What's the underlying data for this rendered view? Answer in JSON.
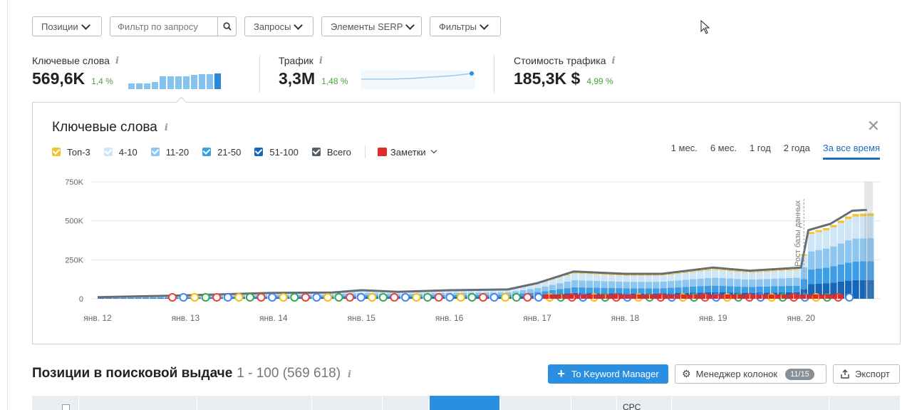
{
  "filters": {
    "positions": "Позиции",
    "search_placeholder": "Фильтр по запросу",
    "queries": "Запросы",
    "serp": "Элементы SERP",
    "filters": "Фильтры"
  },
  "summary": {
    "keywords": {
      "label": "Ключевые слова",
      "value": "569,6K",
      "delta": "1,4 %",
      "bars": [
        0.35,
        0.35,
        0.35,
        0.45,
        0.8,
        0.8,
        0.8,
        0.8,
        0.9,
        0.95,
        0.95,
        1.0
      ]
    },
    "traffic": {
      "label": "Трафик",
      "value": "3,3M",
      "delta": "1,48 %"
    },
    "cost": {
      "label": "Стоимость трафика",
      "value": "185,3K $",
      "delta": "4,99 %"
    }
  },
  "chart_card": {
    "title": "Ключевые слова",
    "legend": [
      {
        "label": "Топ-3",
        "color": "#f4c430"
      },
      {
        "label": "4-10",
        "color": "#cfe6f7"
      },
      {
        "label": "11-20",
        "color": "#8ec6ef"
      },
      {
        "label": "21-50",
        "color": "#3d9ee6"
      },
      {
        "label": "51-100",
        "color": "#1565b8"
      },
      {
        "label": "Всего",
        "color": "#555d66"
      }
    ],
    "notes_label": "Заметки",
    "periods": [
      "1 мес.",
      "6 мес.",
      "1 год",
      "2 года",
      "За все время"
    ],
    "active_period": "За все время"
  },
  "chart_data": {
    "type": "bar",
    "x_labels": [
      "янв. 12",
      "янв. 13",
      "янв. 14",
      "янв. 15",
      "янв. 16",
      "янв. 17",
      "янв. 18",
      "янв. 19",
      "янв. 20"
    ],
    "y_ticks": [
      "750K",
      "500K",
      "250K",
      "0"
    ],
    "ylim": [
      0,
      750000
    ],
    "annotation": "Рост базы данных",
    "annotation_date": "2020-01",
    "series": [
      {
        "name": "Всего",
        "values": [
          {
            "x": "2012-01",
            "y": 10000
          },
          {
            "x": "2013-01",
            "y": 22000
          },
          {
            "x": "2014-01",
            "y": 38000
          },
          {
            "x": "2014-09",
            "y": 40000
          },
          {
            "x": "2015-01",
            "y": 55000
          },
          {
            "x": "2015-06",
            "y": 45000
          },
          {
            "x": "2016-01",
            "y": 55000
          },
          {
            "x": "2016-09",
            "y": 60000
          },
          {
            "x": "2017-01",
            "y": 100000
          },
          {
            "x": "2017-06",
            "y": 175000
          },
          {
            "x": "2018-01",
            "y": 160000
          },
          {
            "x": "2018-06",
            "y": 160000
          },
          {
            "x": "2019-01",
            "y": 200000
          },
          {
            "x": "2019-06",
            "y": 180000
          },
          {
            "x": "2020-01",
            "y": 200000
          },
          {
            "x": "2020-02",
            "y": 440000
          },
          {
            "x": "2020-05",
            "y": 480000
          },
          {
            "x": "2020-08",
            "y": 565000
          },
          {
            "x": "2020-10",
            "y": 570000
          }
        ]
      }
    ]
  },
  "positions": {
    "title": "Позиции в поисковой выдаче",
    "range": "1 - 100 (569 618)",
    "keyword_manager": "To Keyword Manager",
    "column_manager": "Менеджер колонок",
    "columns_badge": "11/15",
    "export": "Экспорт",
    "cpc_header": "CPC"
  }
}
